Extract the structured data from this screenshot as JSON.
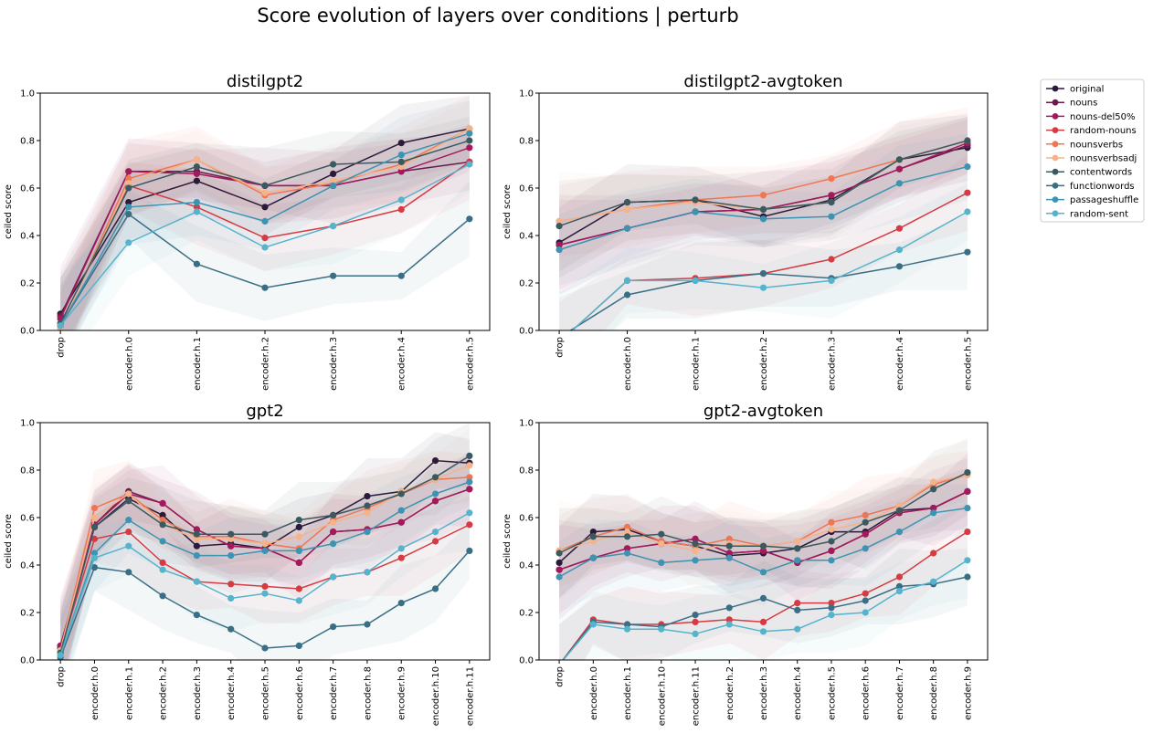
{
  "suptitle": "Score evolution of layers over conditions | perturb",
  "ylabel": "ceiled score",
  "legend": [
    {
      "name": "original",
      "color": "#2d1a3a"
    },
    {
      "name": "nouns",
      "color": "#6b1b4e"
    },
    {
      "name": "nouns-del50%",
      "color": "#a3195b"
    },
    {
      "name": "random-nouns",
      "color": "#d63a42"
    },
    {
      "name": "nounsverbs",
      "color": "#ef7653"
    },
    {
      "name": "nounsverbsadj",
      "color": "#f5b38a"
    },
    {
      "name": "contentwords",
      "color": "#3a5a60"
    },
    {
      "name": "functionwords",
      "color": "#3a6e85"
    },
    {
      "name": "passageshuffle",
      "color": "#3d93b2"
    },
    {
      "name": "random-sent",
      "color": "#55b4cc"
    }
  ],
  "chart_data": [
    {
      "type": "line",
      "title": "distilgpt2",
      "ylabel": "ceiled score",
      "ylim": [
        0,
        1
      ],
      "yticks": [
        "0.0",
        "0.2",
        "0.4",
        "0.6",
        "0.8",
        "1.0"
      ],
      "categories": [
        "drop",
        "encoder.h.0",
        "encoder.h.1",
        "encoder.h.2",
        "encoder.h.3",
        "encoder.h.4",
        "encoder.h.5"
      ],
      "series": [
        {
          "name": "original",
          "values": [
            0.07,
            0.54,
            0.63,
            0.52,
            0.66,
            0.79,
            0.85
          ]
        },
        {
          "name": "nouns",
          "values": [
            0.06,
            0.67,
            0.67,
            0.61,
            0.61,
            0.67,
            0.71
          ]
        },
        {
          "name": "nouns-del50%",
          "values": [
            0.05,
            0.67,
            0.66,
            0.61,
            0.61,
            0.67,
            0.77
          ]
        },
        {
          "name": "random-nouns",
          "values": [
            0.02,
            0.61,
            0.52,
            0.39,
            0.44,
            0.51,
            0.71
          ]
        },
        {
          "name": "nounsverbs",
          "values": [
            0.01,
            0.64,
            0.72,
            0.57,
            0.62,
            0.7,
            0.85
          ]
        },
        {
          "name": "nounsverbsadj",
          "values": [
            0.01,
            0.62,
            0.72,
            0.58,
            0.63,
            0.69,
            0.85
          ]
        },
        {
          "name": "contentwords",
          "values": [
            0.03,
            0.6,
            0.69,
            0.61,
            0.7,
            0.71,
            0.8
          ]
        },
        {
          "name": "functionwords",
          "values": [
            0.02,
            0.49,
            0.28,
            0.18,
            0.23,
            0.23,
            0.47
          ]
        },
        {
          "name": "passageshuffle",
          "values": [
            0.02,
            0.52,
            0.54,
            0.46,
            0.61,
            0.74,
            0.83
          ]
        },
        {
          "name": "random-sent",
          "values": [
            0.02,
            0.37,
            0.5,
            0.35,
            0.44,
            0.55,
            0.7
          ]
        }
      ]
    },
    {
      "type": "line",
      "title": "distilgpt2-avgtoken",
      "ylabel": "ceiled score",
      "ylim": [
        0,
        1
      ],
      "yticks": [
        "0.0",
        "0.2",
        "0.4",
        "0.6",
        "0.8",
        "1.0"
      ],
      "categories": [
        "drop",
        "encoder.h.0",
        "encoder.h.1",
        "encoder.h.2",
        "encoder.h.3",
        "encoder.h.4",
        "encoder.h.5"
      ],
      "series": [
        {
          "name": "original",
          "values": [
            0.37,
            0.54,
            0.55,
            0.48,
            0.55,
            0.72,
            0.77
          ]
        },
        {
          "name": "nouns",
          "values": [
            0.36,
            0.43,
            0.5,
            0.51,
            0.57,
            0.68,
            0.78
          ]
        },
        {
          "name": "nouns-del50%",
          "values": [
            0.36,
            0.43,
            0.5,
            0.51,
            0.57,
            0.68,
            0.79
          ]
        },
        {
          "name": "random-nouns",
          "values": [
            -0.05,
            0.21,
            0.22,
            0.24,
            0.3,
            0.43,
            0.58
          ]
        },
        {
          "name": "nounsverbs",
          "values": [
            0.46,
            0.51,
            0.55,
            0.57,
            0.64,
            0.72,
            0.8
          ]
        },
        {
          "name": "nounsverbsadj",
          "values": [
            0.46,
            0.51,
            0.54,
            0.51,
            0.54,
            0.72,
            0.8
          ]
        },
        {
          "name": "contentwords",
          "values": [
            0.44,
            0.54,
            0.55,
            0.51,
            0.54,
            0.72,
            0.8
          ]
        },
        {
          "name": "functionwords",
          "values": [
            -0.03,
            0.15,
            0.21,
            0.24,
            0.22,
            0.27,
            0.33
          ]
        },
        {
          "name": "passageshuffle",
          "values": [
            0.34,
            0.43,
            0.5,
            0.47,
            0.48,
            0.62,
            0.69
          ]
        },
        {
          "name": "random-sent",
          "values": [
            -0.05,
            0.21,
            0.21,
            0.18,
            0.21,
            0.34,
            0.5
          ]
        }
      ]
    },
    {
      "type": "line",
      "title": "gpt2",
      "ylabel": "ceiled score",
      "ylim": [
        0,
        1
      ],
      "yticks": [
        "0.0",
        "0.2",
        "0.4",
        "0.6",
        "0.8",
        "1.0"
      ],
      "categories": [
        "drop",
        "encoder.h.0",
        "encoder.h.1",
        "encoder.h.2",
        "encoder.h.3",
        "encoder.h.4",
        "encoder.h.5",
        "encoder.h.6",
        "encoder.h.7",
        "encoder.h.8",
        "encoder.h.9",
        "encoder.h.10",
        "encoder.h.11"
      ],
      "series": [
        {
          "name": "original",
          "values": [
            0.05,
            0.56,
            0.68,
            0.61,
            0.48,
            0.49,
            0.47,
            0.56,
            0.61,
            0.69,
            0.71,
            0.84,
            0.83
          ]
        },
        {
          "name": "nouns",
          "values": [
            0.06,
            0.57,
            0.71,
            0.66,
            0.55,
            0.48,
            0.47,
            0.41,
            0.54,
            0.55,
            0.58,
            0.67,
            0.72
          ]
        },
        {
          "name": "nouns-del50%",
          "values": [
            0.06,
            0.57,
            0.7,
            0.66,
            0.55,
            0.48,
            0.47,
            0.41,
            0.54,
            0.55,
            0.58,
            0.67,
            0.72
          ]
        },
        {
          "name": "random-nouns",
          "values": [
            0.04,
            0.51,
            0.54,
            0.41,
            0.33,
            0.32,
            0.31,
            0.3,
            0.35,
            0.37,
            0.43,
            0.5,
            0.57
          ]
        },
        {
          "name": "nounsverbs",
          "values": [
            0.04,
            0.64,
            0.7,
            0.59,
            0.52,
            0.52,
            0.49,
            0.47,
            0.59,
            0.64,
            0.7,
            0.76,
            0.77
          ]
        },
        {
          "name": "nounsverbsadj",
          "values": [
            0.04,
            0.6,
            0.7,
            0.57,
            0.51,
            0.51,
            0.49,
            0.52,
            0.58,
            0.62,
            0.71,
            0.76,
            0.82
          ]
        },
        {
          "name": "contentwords",
          "values": [
            0.03,
            0.56,
            0.67,
            0.57,
            0.53,
            0.53,
            0.53,
            0.59,
            0.61,
            0.65,
            0.7,
            0.77,
            0.86
          ]
        },
        {
          "name": "functionwords",
          "values": [
            0.01,
            0.39,
            0.37,
            0.27,
            0.19,
            0.13,
            0.05,
            0.06,
            0.14,
            0.15,
            0.24,
            0.3,
            0.46
          ]
        },
        {
          "name": "passageshuffle",
          "values": [
            0.02,
            0.45,
            0.59,
            0.5,
            0.44,
            0.44,
            0.46,
            0.46,
            0.49,
            0.54,
            0.63,
            0.7,
            0.75
          ]
        },
        {
          "name": "random-sent",
          "values": [
            0.02,
            0.43,
            0.48,
            0.38,
            0.33,
            0.26,
            0.28,
            0.25,
            0.35,
            0.37,
            0.47,
            0.54,
            0.62
          ]
        }
      ]
    },
    {
      "type": "line",
      "title": "gpt2-avgtoken",
      "ylabel": "ceiled score",
      "ylim": [
        0,
        1
      ],
      "yticks": [
        "0.0",
        "0.2",
        "0.4",
        "0.6",
        "0.8",
        "1.0"
      ],
      "categories": [
        "drop",
        "encoder.h.0",
        "encoder.h.1",
        "encoder.h.10",
        "encoder.h.11",
        "encoder.h.2",
        "encoder.h.3",
        "encoder.h.4",
        "encoder.h.5",
        "encoder.h.6",
        "encoder.h.7",
        "encoder.h.8",
        "encoder.h.9"
      ],
      "series": [
        {
          "name": "original",
          "values": [
            0.41,
            0.54,
            0.55,
            0.5,
            0.48,
            0.44,
            0.45,
            0.47,
            0.54,
            0.54,
            0.63,
            0.64,
            0.71
          ]
        },
        {
          "name": "nouns",
          "values": [
            0.38,
            0.43,
            0.47,
            0.49,
            0.51,
            0.45,
            0.46,
            0.41,
            0.46,
            0.53,
            0.62,
            0.64,
            0.71
          ]
        },
        {
          "name": "nouns-del50%",
          "values": [
            0.38,
            0.43,
            0.47,
            0.49,
            0.51,
            0.45,
            0.46,
            0.41,
            0.46,
            0.53,
            0.62,
            0.64,
            0.71
          ]
        },
        {
          "name": "random-nouns",
          "values": [
            -0.02,
            0.17,
            0.15,
            0.15,
            0.16,
            0.17,
            0.16,
            0.24,
            0.24,
            0.28,
            0.35,
            0.45,
            0.54
          ]
        },
        {
          "name": "nounsverbs",
          "values": [
            0.46,
            0.52,
            0.56,
            0.5,
            0.48,
            0.51,
            0.48,
            0.5,
            0.58,
            0.61,
            0.65,
            0.74,
            0.78
          ]
        },
        {
          "name": "nounsverbsadj",
          "values": [
            0.46,
            0.5,
            0.54,
            0.49,
            0.46,
            0.49,
            0.48,
            0.5,
            0.55,
            0.58,
            0.65,
            0.75,
            0.78
          ]
        },
        {
          "name": "contentwords",
          "values": [
            0.45,
            0.52,
            0.52,
            0.53,
            0.49,
            0.48,
            0.48,
            0.47,
            0.5,
            0.58,
            0.63,
            0.72,
            0.79
          ]
        },
        {
          "name": "functionwords",
          "values": [
            -0.02,
            0.16,
            0.15,
            0.14,
            0.19,
            0.22,
            0.26,
            0.21,
            0.22,
            0.25,
            0.31,
            0.32,
            0.35
          ]
        },
        {
          "name": "passageshuffle",
          "values": [
            0.35,
            0.43,
            0.45,
            0.41,
            0.42,
            0.43,
            0.37,
            0.42,
            0.42,
            0.47,
            0.54,
            0.62,
            0.64
          ]
        },
        {
          "name": "random-sent",
          "values": [
            -0.02,
            0.15,
            0.13,
            0.13,
            0.11,
            0.15,
            0.12,
            0.13,
            0.19,
            0.2,
            0.29,
            0.33,
            0.42
          ]
        }
      ]
    }
  ]
}
